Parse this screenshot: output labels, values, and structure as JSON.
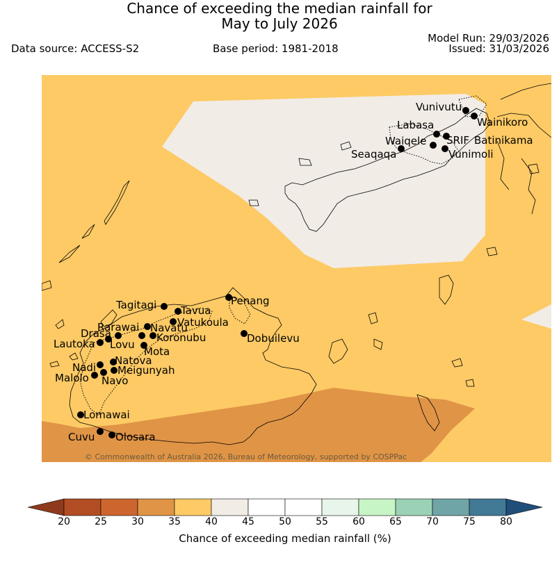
{
  "header": {
    "title_line1": "Chance of exceeding the median rainfall for",
    "title_line2": "May to July 2026",
    "data_source": "Data source: ACCESS-S2",
    "base_period": "Base period: 1981-2018",
    "model_run": "Model Run: 29/03/2026",
    "issued": "Issued: 31/03/2026"
  },
  "map": {
    "copyright": "© Commonwealth of Australia 2026, Bureau of Meteorology, supported by COSPPac",
    "colors": {
      "band_35_40": "#fdca65",
      "band_40_45": "#f1ece6",
      "band_30_35": "#e09446",
      "coast": "#000000"
    },
    "stations": [
      "Vunivutu",
      "Wainikoro",
      "Labasa",
      "SRIF",
      "Batinikama",
      "Waiqele",
      "Seaqaqa",
      "Vunimoli",
      "Tagitagi",
      "Penang",
      "Tavua",
      "Vatukoula",
      "Rarawai",
      "Navatu",
      "Drasa",
      "Koronubu",
      "Dobuilevu",
      "Lautoka",
      "Lovu",
      "Mota",
      "Nadi",
      "Natova",
      "Meigunyah",
      "Malolo",
      "Navo",
      "Lomawai",
      "Cuvu",
      "Olosara"
    ]
  },
  "colorbar": {
    "title": "Chance of exceeding median rainfall (%)",
    "ticks": [
      "20",
      "25",
      "30",
      "35",
      "40",
      "45",
      "50",
      "55",
      "60",
      "65",
      "70",
      "75",
      "80"
    ],
    "colors": [
      "#8f3a1c",
      "#b34d24",
      "#cd662e",
      "#e09446",
      "#fdca65",
      "#f1ece6",
      "#ffffff",
      "#ffffff",
      "#e8f5ea",
      "#c8f5c6",
      "#9bd2b6",
      "#6fa5a6",
      "#427a96",
      "#1f4e7a"
    ]
  }
}
